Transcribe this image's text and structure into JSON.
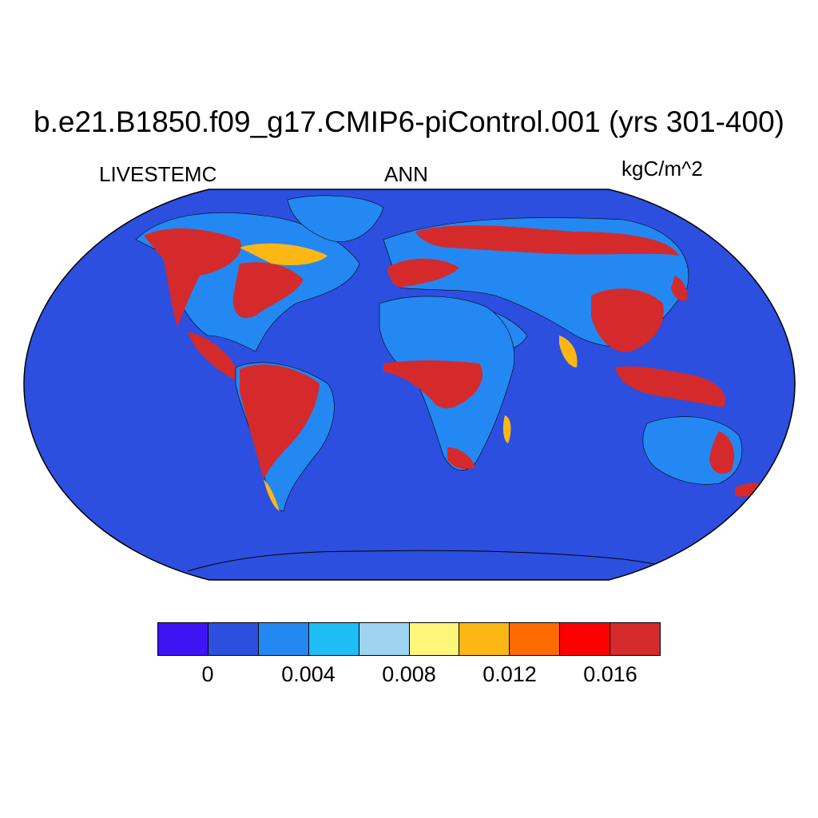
{
  "title": "b.e21.B1850.f09_g17.CMIP6-piControl.001 (yrs 301-400)",
  "left_label": "LIVESTEMC",
  "center_label": "ANN",
  "right_label": "kgC/m^2",
  "colors": {
    "ocean": "#2c4fe0",
    "levels": [
      "#3f14f4",
      "#2d4fdf",
      "#2488f3",
      "#1ebdf5",
      "#9fd3f0",
      "#fff57a",
      "#fdb714",
      "#fd6a00",
      "#fb0000",
      "#d42a2b"
    ]
  },
  "colorbar": {
    "tick_labels": [
      "0",
      "0.004",
      "0.008",
      "0.012",
      "0.016"
    ]
  }
}
